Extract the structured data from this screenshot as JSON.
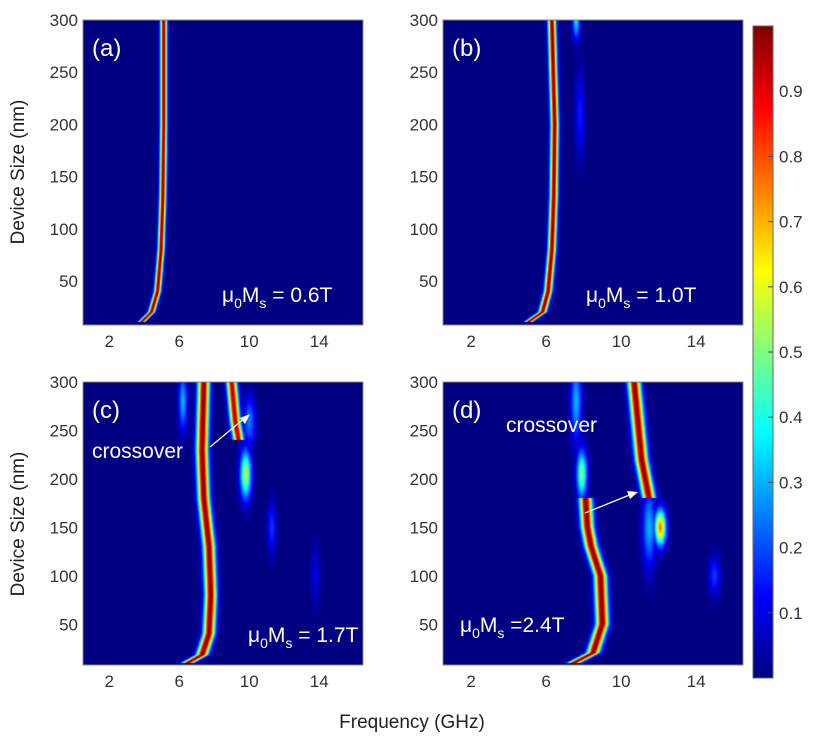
{
  "chart_data": {
    "type": "heatmap",
    "xlabel": "Frequency (GHz)",
    "ylabel": "Device Size (nm)",
    "xlim": [
      0.5,
      16.5
    ],
    "ylim": [
      8,
      300
    ],
    "xticks": [
      "2",
      "6",
      "10",
      "14"
    ],
    "xtick_values": [
      2,
      6,
      10,
      14
    ],
    "yticks": [
      "50",
      "100",
      "150",
      "200",
      "250",
      "300"
    ],
    "ytick_values": [
      50,
      100,
      150,
      200,
      250,
      300
    ],
    "colorbar": {
      "range": [
        0,
        1
      ],
      "ticks": [
        "0.1",
        "0.2",
        "0.3",
        "0.4",
        "0.5",
        "0.6",
        "0.7",
        "0.8",
        "0.9"
      ],
      "tick_values": [
        0.1,
        0.2,
        0.3,
        0.4,
        0.5,
        0.6,
        0.7,
        0.8,
        0.9
      ]
    },
    "panels": [
      {
        "label": "(a)",
        "annotation": {
          "mu": "μ",
          "zero": "0",
          "m": "M",
          "s": "s",
          "value": " = 0.6T"
        },
        "modes": [
          {
            "points": [
              [
                3.8,
                10
              ],
              [
                4.4,
                20
              ],
              [
                4.75,
                40
              ],
              [
                4.95,
                80
              ],
              [
                5.05,
                130
              ],
              [
                5.1,
                200
              ],
              [
                5.1,
                300
              ]
            ],
            "width": 0.18,
            "amp": 1.0
          }
        ],
        "blobs": []
      },
      {
        "label": "(b)",
        "annotation": {
          "mu": "μ",
          "zero": "0",
          "m": "M",
          "s": "s",
          "value": " = 1.0T"
        },
        "modes": [
          {
            "points": [
              [
                5.0,
                10
              ],
              [
                5.8,
                20
              ],
              [
                6.1,
                40
              ],
              [
                6.3,
                80
              ],
              [
                6.4,
                130
              ],
              [
                6.45,
                200
              ],
              [
                6.3,
                300
              ]
            ],
            "width": 0.2,
            "amp": 1.0
          }
        ],
        "blobs": [
          {
            "f": 7.6,
            "s": 300,
            "sf": 0.2,
            "ss": 18,
            "a": 0.35
          },
          {
            "f": 7.8,
            "s": 210,
            "sf": 0.25,
            "ss": 40,
            "a": 0.15
          }
        ]
      },
      {
        "label": "(c)",
        "annotation": {
          "mu": "μ",
          "zero": "0",
          "m": "M",
          "s": "s",
          "value": " = 1.7T"
        },
        "crossover": "crossover",
        "modes": [
          {
            "points": [
              [
                6.5,
                10
              ],
              [
                7.3,
                18
              ],
              [
                7.7,
                40
              ],
              [
                7.8,
                80
              ],
              [
                7.7,
                130
              ],
              [
                7.4,
                180
              ],
              [
                7.3,
                230
              ],
              [
                7.4,
                300
              ]
            ],
            "width": 0.32,
            "amp": 1.0
          },
          {
            "points": [
              [
                9.0,
                300
              ],
              [
                9.2,
                260
              ],
              [
                9.4,
                240
              ]
            ],
            "width": 0.28,
            "amp": 0.95
          }
        ],
        "blobs": [
          {
            "f": 6.2,
            "s": 280,
            "sf": 0.25,
            "ss": 30,
            "a": 0.3
          },
          {
            "f": 9.8,
            "s": 205,
            "sf": 0.32,
            "ss": 25,
            "a": 0.55
          },
          {
            "f": 10.0,
            "s": 260,
            "sf": 0.35,
            "ss": 25,
            "a": 0.25
          },
          {
            "f": 11.3,
            "s": 150,
            "sf": 0.25,
            "ss": 25,
            "a": 0.18
          },
          {
            "f": 13.8,
            "s": 100,
            "sf": 0.25,
            "ss": 30,
            "a": 0.1
          }
        ]
      },
      {
        "label": "(d)",
        "annotation": {
          "mu": "μ",
          "zero": "0",
          "m": "M",
          "s": "s",
          "value": " =2.4T"
        },
        "crossover": "crossover",
        "modes": [
          {
            "points": [
              [
                7.5,
                10
              ],
              [
                8.5,
                20
              ],
              [
                9.0,
                50
              ],
              [
                8.9,
                100
              ],
              [
                8.4,
                130
              ],
              [
                8.2,
                150
              ],
              [
                8.1,
                180
              ]
            ],
            "width": 0.32,
            "amp": 1.0
          },
          {
            "points": [
              [
                10.7,
                300
              ],
              [
                10.9,
                260
              ],
              [
                11.1,
                220
              ],
              [
                11.3,
                200
              ],
              [
                11.5,
                180
              ]
            ],
            "width": 0.32,
            "amp": 1.0
          }
        ],
        "blobs": [
          {
            "f": 7.6,
            "s": 280,
            "sf": 0.3,
            "ss": 40,
            "a": 0.3
          },
          {
            "f": 7.9,
            "s": 205,
            "sf": 0.28,
            "ss": 25,
            "a": 0.5
          },
          {
            "f": 12.1,
            "s": 150,
            "sf": 0.3,
            "ss": 18,
            "a": 0.75
          },
          {
            "f": 11.5,
            "s": 150,
            "sf": 0.35,
            "ss": 40,
            "a": 0.3
          },
          {
            "f": 15.0,
            "s": 100,
            "sf": 0.3,
            "ss": 20,
            "a": 0.18
          }
        ]
      }
    ]
  }
}
